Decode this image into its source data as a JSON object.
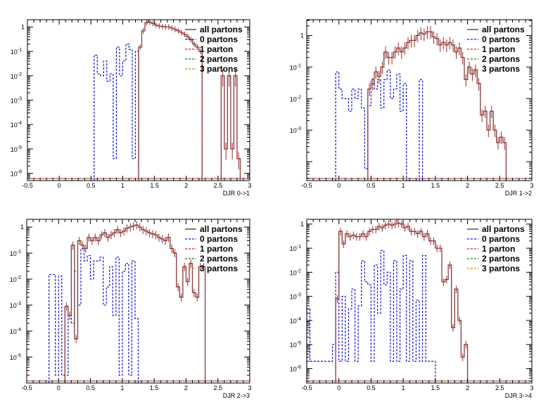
{
  "legend": [
    {
      "name": "all partons",
      "color": "#555555",
      "dash": "solid"
    },
    {
      "name": "0 partons",
      "color": "#1010d0",
      "dash": "dashed"
    },
    {
      "name": "1 parton",
      "color": "#c81e1e",
      "dash": "dashed"
    },
    {
      "name": "2 partons",
      "color": "#1a7a1a",
      "dash": "dashed"
    },
    {
      "name": "3 partons",
      "color": "#d87a1e",
      "dash": "dashed"
    }
  ],
  "chart_data": [
    {
      "type": "step-histogram",
      "xlabel": "DJR 0->1",
      "xlim": [
        -0.5,
        3
      ],
      "ylim_log10": [
        -6.3,
        0.3
      ],
      "yscale": "log",
      "xticks": [
        "-0.5",
        "0",
        "0.5",
        "1",
        "1.5",
        "2",
        "2.5",
        "3"
      ],
      "yticks": [
        {
          "exp": 0,
          "label": "1"
        },
        {
          "exp": -1,
          "label": "10-1"
        },
        {
          "exp": -2,
          "label": "10-2"
        },
        {
          "exp": -3,
          "label": "10-3"
        },
        {
          "exp": -4,
          "label": "10-4"
        },
        {
          "exp": -5,
          "label": "10-5"
        },
        {
          "exp": -6,
          "label": "10-6"
        }
      ],
      "bin_width": 0.05,
      "total": {
        "start": 1.25,
        "values": [
          0.15,
          0.7,
          1.5,
          1.6,
          1.4,
          1.2,
          1.1,
          1.05,
          1.0,
          1.0,
          0.9,
          0.8,
          0.7,
          0.6,
          0.5,
          0.4,
          0.3,
          0.2,
          0.15,
          0.1
        ]
      },
      "tail": {
        "start": 2.55,
        "values": [
          0.01,
          1e-05,
          0.01,
          1e-05,
          0.01,
          4e-06
        ]
      },
      "zero": {
        "start": 0.55,
        "values": [
          0.07,
          0.012,
          0.01,
          0.04,
          0.006,
          0.012,
          4e-06,
          0.15,
          0.01,
          0.04,
          0.2,
          0.12,
          4e-06,
          0.1
        ]
      },
      "err_rel": 0.3,
      "err_rel_tail": 0.8
    },
    {
      "type": "step-histogram",
      "xlabel": "DJR 1->2",
      "xlim": [
        -0.5,
        3
      ],
      "ylim_log10": [
        -4.6,
        0.5
      ],
      "yscale": "log",
      "xticks": [
        "-0.5",
        "0",
        "0.5",
        "1",
        "1.5",
        "2",
        "2.5",
        "3"
      ],
      "yticks": [
        {
          "exp": 0,
          "label": "1"
        },
        {
          "exp": -1,
          "label": "10-1"
        },
        {
          "exp": -2,
          "label": "10-2"
        },
        {
          "exp": -3,
          "label": "10-3"
        }
      ],
      "bin_width": 0.05,
      "total": {
        "start": 0.45,
        "values": [
          0.02,
          0.03,
          0.07,
          0.05,
          0.1,
          0.3,
          0.2,
          0.2,
          0.3,
          0.4,
          0.3,
          0.4,
          0.6,
          0.7,
          0.7,
          1.0,
          1.2,
          1.1,
          1.3,
          1.3,
          0.9,
          0.8,
          0.5,
          0.6,
          0.5,
          0.6,
          0.5,
          0.3,
          0.4,
          0.2,
          0.04,
          0.1,
          0.06,
          0.08,
          0.03,
          0.003,
          0.004,
          0.001,
          0.004,
          0.001,
          0.0004,
          0.0006,
          0.0004
        ]
      },
      "tail": null,
      "zero": {
        "start": -0.05,
        "values": [
          0.07,
          0.02,
          0.01,
          0.01,
          0.004,
          0.02,
          0.01,
          0.02,
          0.005,
          6e-05,
          0.006,
          0.04,
          0.02,
          0.04,
          0.005,
          0.04,
          0.08,
          0.01,
          0.02,
          0.06,
          0.004,
          0.03,
          2e-05,
          2e-05,
          2e-05,
          2e-05,
          0.04,
          2e-05
        ]
      },
      "err_rel": 0.5,
      "err_rel_tail": 0.9
    },
    {
      "type": "step-histogram",
      "xlabel": "DJR 2->3",
      "xlim": [
        -0.5,
        3
      ],
      "ylim_log10": [
        -6,
        0.3
      ],
      "yscale": "log",
      "xticks": [
        "-0.5",
        "0",
        "0.5",
        "1",
        "1.5",
        "2",
        "2.5",
        "3"
      ],
      "yticks": [
        {
          "exp": 0,
          "label": "1"
        },
        {
          "exp": -1,
          "label": "10-1"
        },
        {
          "exp": -2,
          "label": "10-2"
        },
        {
          "exp": -3,
          "label": "10-3"
        },
        {
          "exp": -4,
          "label": "10-4"
        },
        {
          "exp": -5,
          "label": "10-5"
        }
      ],
      "bin_width": 0.05,
      "total": {
        "start": 0.1,
        "values": [
          0.0009,
          0.0004,
          0.2,
          5e-05,
          0.3,
          0.2,
          0.15,
          0.4,
          0.3,
          0.4,
          0.3,
          0.5,
          0.6,
          0.4,
          0.5,
          0.6,
          0.8,
          0.6,
          0.7,
          0.9,
          1.0,
          1.1,
          1.2,
          1.0,
          0.8,
          0.7,
          0.6,
          0.55,
          0.5,
          0.4,
          0.35,
          0.3,
          0.4,
          0.15,
          0.1,
          0.005,
          0.002,
          0.03,
          0.008,
          0.04,
          0.003,
          0.002,
          0.03,
          0.03
        ]
      },
      "tail": null,
      "zero": {
        "start": -0.15,
        "values": [
          0.015,
          0.015,
          2e-06,
          0.013,
          2e-06,
          2e-06,
          0.0004,
          0.0002,
          0.02,
          0.001,
          0.15,
          0.05,
          0.08,
          0.01,
          0.05,
          0.05,
          0.07,
          0.001,
          0.005,
          0.03,
          0.0004,
          0.07,
          2e-06,
          0.02,
          0.04,
          2e-06,
          0.05,
          0.0003
        ]
      },
      "err_rel": 0.4,
      "err_rel_tail": 0.9
    },
    {
      "type": "step-histogram",
      "xlabel": "DJR 3->4",
      "xlim": [
        -0.5,
        3
      ],
      "ylim_log10": [
        -6.6,
        0.2
      ],
      "yscale": "log",
      "xticks": [
        "-0.5",
        "0",
        "0.5",
        "1",
        "1.5",
        "2",
        "2.5",
        "3"
      ],
      "yticks": [
        {
          "exp": 0,
          "label": "1"
        },
        {
          "exp": -1,
          "label": "10-1"
        },
        {
          "exp": -2,
          "label": "10-2"
        },
        {
          "exp": -3,
          "label": "10-3"
        },
        {
          "exp": -4,
          "label": "10-4"
        },
        {
          "exp": -5,
          "label": "10-5"
        },
        {
          "exp": -6,
          "label": "10-6"
        }
      ],
      "bin_width": 0.05,
      "total": {
        "start": -0.05,
        "values": [
          0.0008,
          0.5,
          0.15,
          0.4,
          0.3,
          0.35,
          0.3,
          0.3,
          0.4,
          0.3,
          0.5,
          0.6,
          0.6,
          0.8,
          0.7,
          0.9,
          1.0,
          0.9,
          1.0,
          1.1,
          1.0,
          0.7,
          0.8,
          0.5,
          0.5,
          0.4,
          0.5,
          0.3,
          0.4,
          0.2,
          0.2,
          0.1,
          0.1,
          0.004,
          0.005,
          0.02,
          5e-05,
          0.002,
          0.0001,
          3e-06,
          1e-05
        ]
      },
      "tail": null,
      "zero": {
        "start": -0.5,
        "values": [
          0.0003,
          2e-06,
          2e-06,
          2e-06,
          2e-06,
          2e-06,
          2e-06,
          2e-06,
          1e-05,
          0.01,
          2e-06,
          0.001,
          2e-06,
          0.0003,
          0.002,
          2e-06,
          0.0004,
          0.03,
          0.004,
          0.003,
          2e-06,
          0.02,
          0.0002,
          0.08,
          0.003,
          0.01,
          2e-06,
          0.03,
          2e-06,
          0.002,
          0.05,
          2e-06,
          0.03,
          2e-06,
          0.0007,
          2e-06,
          0.05,
          2e-06,
          2e-06,
          2e-06
        ]
      },
      "err_rel": 0.4,
      "err_rel_tail": 0.9
    }
  ]
}
